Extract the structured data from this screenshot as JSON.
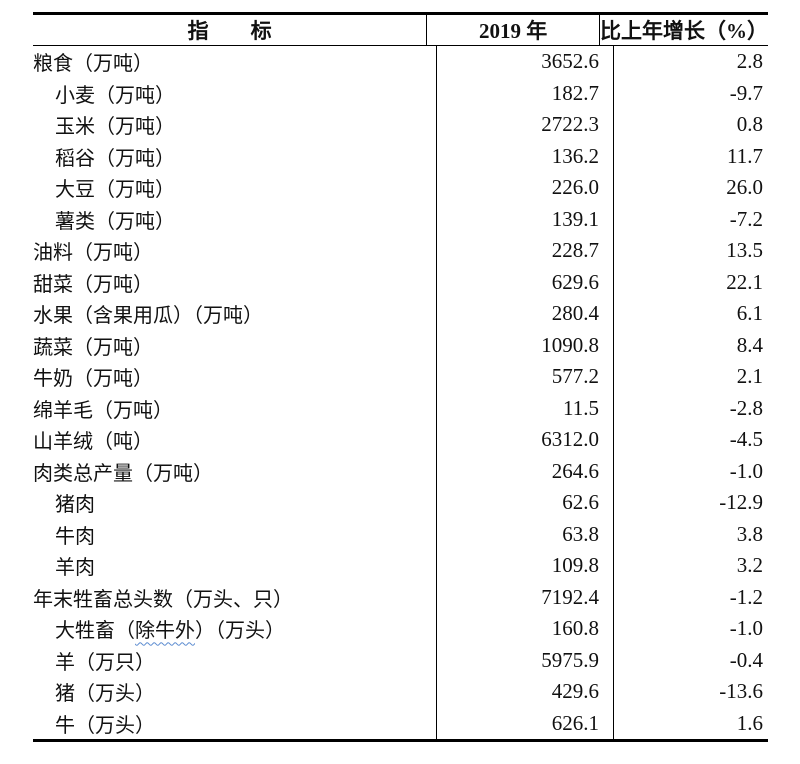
{
  "table": {
    "columns": [
      {
        "label": "指　　标"
      },
      {
        "label": "2019 年"
      },
      {
        "label": "比上年增长（%）"
      }
    ],
    "rows": [
      {
        "label": "粮食（万吨）",
        "indent": 0,
        "value": "3652.6",
        "growth": "2.8"
      },
      {
        "label": "小麦（万吨）",
        "indent": 1,
        "value": "182.7",
        "growth": "-9.7"
      },
      {
        "label": "玉米（万吨）",
        "indent": 1,
        "value": "2722.3",
        "growth": "0.8"
      },
      {
        "label": "稻谷（万吨）",
        "indent": 1,
        "value": "136.2",
        "growth": "11.7"
      },
      {
        "label": "大豆（万吨）",
        "indent": 1,
        "value": "226.0",
        "growth": "26.0"
      },
      {
        "label": "薯类（万吨）",
        "indent": 1,
        "value": "139.1",
        "growth": "-7.2"
      },
      {
        "label": "油料（万吨）",
        "indent": 0,
        "value": "228.7",
        "growth": "13.5"
      },
      {
        "label": "甜菜（万吨）",
        "indent": 0,
        "value": "629.6",
        "growth": "22.1"
      },
      {
        "label": "水果（含果用瓜）（万吨）",
        "indent": 0,
        "value": "280.4",
        "growth": "6.1"
      },
      {
        "label": "蔬菜（万吨）",
        "indent": 0,
        "value": "1090.8",
        "growth": "8.4"
      },
      {
        "label": "牛奶（万吨）",
        "indent": 0,
        "value": "577.2",
        "growth": "2.1"
      },
      {
        "label": "绵羊毛（万吨）",
        "indent": 0,
        "value": "11.5",
        "growth": "-2.8"
      },
      {
        "label": "山羊绒（吨）",
        "indent": 0,
        "value": "6312.0",
        "growth": "-4.5"
      },
      {
        "label": "肉类总产量（万吨）",
        "indent": 0,
        "value": "264.6",
        "growth": "-1.0"
      },
      {
        "label": "猪肉",
        "indent": 1,
        "value": "62.6",
        "growth": "-12.9"
      },
      {
        "label": "牛肉",
        "indent": 1,
        "value": "63.8",
        "growth": "3.8"
      },
      {
        "label": "羊肉",
        "indent": 1,
        "value": "109.8",
        "growth": "3.2"
      },
      {
        "label": "年末牲畜总头数（万头、只）",
        "indent": 0,
        "value": "7192.4",
        "growth": "-1.2"
      },
      {
        "label": "大牲畜（",
        "wavy": "除牛外",
        "label_end": "）（万头）",
        "indent": 1,
        "value": "160.8",
        "growth": "-1.0"
      },
      {
        "label": "羊（万只）",
        "indent": 1,
        "value": "5975.9",
        "growth": "-0.4"
      },
      {
        "label": "猪（万头）",
        "indent": 1,
        "value": "429.6",
        "growth": "-13.6"
      },
      {
        "label": "牛（万头）",
        "indent": 1,
        "value": "626.1",
        "growth": "1.6"
      }
    ],
    "colors": {
      "text": "#111111",
      "border": "#000000",
      "spellcheck_underline": "#5b8bd0"
    }
  }
}
